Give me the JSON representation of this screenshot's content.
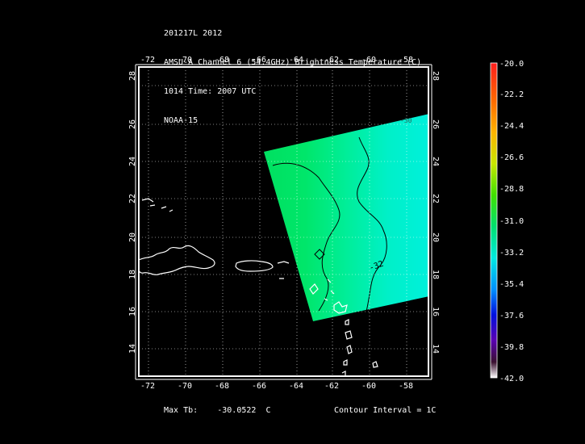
{
  "header": {
    "line1": "201217L 2012",
    "line2": "AMSU-A Channel 6 (54.4GHz) Brightness Temperature (C)",
    "line3": "1014 Time: 2007 UTC",
    "line4": "NOAA-15"
  },
  "map": {
    "lon_ticks": [
      "-72",
      "-70",
      "-68",
      "-66",
      "-64",
      "-62",
      "-60",
      "-58"
    ],
    "lat_ticks": [
      "14",
      "16",
      "18",
      "20",
      "22",
      "24",
      "26",
      "28"
    ],
    "lon_range": [
      -73,
      -57
    ],
    "lat_range": [
      12.5,
      29
    ],
    "contour_labels": [
      "-32",
      "-30"
    ]
  },
  "colorbar": {
    "labels": [
      "-20.0",
      "-22.2",
      "-24.4",
      "-26.6",
      "-28.8",
      "-31.0",
      "-33.2",
      "-35.4",
      "-37.6",
      "-39.8",
      "-42.0"
    ],
    "range": [
      -42.0,
      -20.0
    ]
  },
  "footer": {
    "max_label": "Max Tb:",
    "max_value": "-30.0522",
    "max_unit": "C",
    "contour_text": "Contour Interval = 1C"
  }
}
